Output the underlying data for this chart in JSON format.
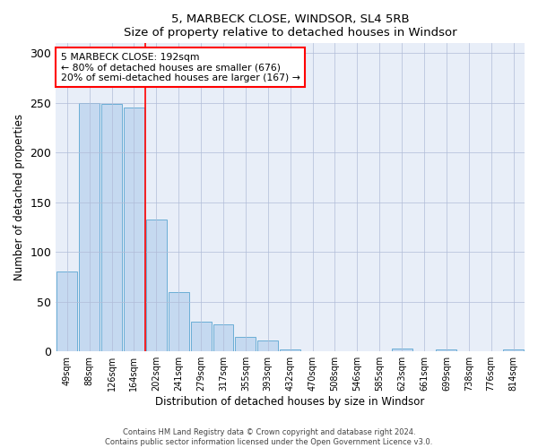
{
  "title": "5, MARBECK CLOSE, WINDSOR, SL4 5RB",
  "subtitle": "Size of property relative to detached houses in Windsor",
  "xlabel": "Distribution of detached houses by size in Windsor",
  "ylabel": "Number of detached properties",
  "bar_color": "#c5d9f0",
  "bar_edge_color": "#6baed6",
  "bg_color": "#e8eef8",
  "categories": [
    "49sqm",
    "88sqm",
    "126sqm",
    "164sqm",
    "202sqm",
    "241sqm",
    "279sqm",
    "317sqm",
    "355sqm",
    "393sqm",
    "432sqm",
    "470sqm",
    "508sqm",
    "546sqm",
    "585sqm",
    "623sqm",
    "661sqm",
    "699sqm",
    "738sqm",
    "776sqm",
    "814sqm"
  ],
  "values": [
    80,
    250,
    249,
    245,
    133,
    60,
    30,
    27,
    15,
    11,
    2,
    0,
    0,
    0,
    0,
    3,
    0,
    2,
    0,
    0,
    2
  ],
  "ylim": [
    0,
    310
  ],
  "yticks": [
    0,
    50,
    100,
    150,
    200,
    250,
    300
  ],
  "red_line_after_index": 3,
  "annotation_text": "5 MARBECK CLOSE: 192sqm\n← 80% of detached houses are smaller (676)\n20% of semi-detached houses are larger (167) →",
  "annotation_box_color": "white",
  "annotation_box_edge": "red",
  "footer_line1": "Contains HM Land Registry data © Crown copyright and database right 2024.",
  "footer_line2": "Contains public sector information licensed under the Open Government Licence v3.0."
}
